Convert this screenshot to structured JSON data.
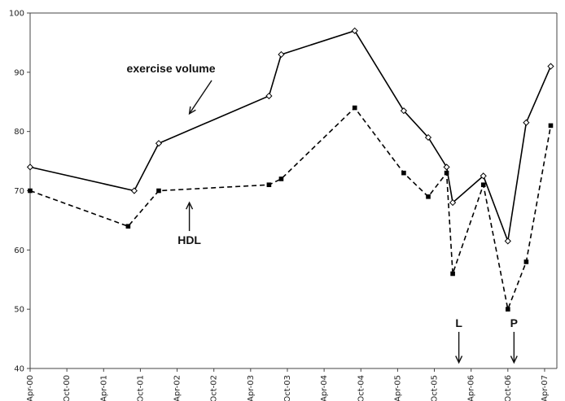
{
  "chart_data": {
    "type": "line",
    "title": "",
    "xlabel": "",
    "ylabel": "",
    "ylim": [
      40,
      100
    ],
    "yticks": [
      40,
      50,
      60,
      70,
      80,
      90,
      100
    ],
    "xlim": [
      "2000-04",
      "2007-06"
    ],
    "xticks": [
      "Apr-00",
      "Oct-00",
      "Apr-01",
      "Oct-01",
      "Apr-02",
      "Oct-02",
      "Apr-03",
      "Oct-03",
      "Apr-04",
      "Oct-04",
      "Apr-05",
      "Oct-05",
      "Apr-06",
      "Oct-06",
      "Apr-07"
    ],
    "grid": false,
    "legend": "none",
    "series": [
      {
        "name": "exercise volume",
        "style": "solid",
        "marker": "open-diamond",
        "color": "#000000",
        "points": [
          {
            "x": "2000-04",
            "y": 74
          },
          {
            "x": "2001-09",
            "y": 70
          },
          {
            "x": "2002-01",
            "y": 78
          },
          {
            "x": "2003-07",
            "y": 86
          },
          {
            "x": "2003-09",
            "y": 93
          },
          {
            "x": "2004-09",
            "y": 97
          },
          {
            "x": "2005-05",
            "y": 83.5
          },
          {
            "x": "2005-09",
            "y": 79
          },
          {
            "x": "2005-12",
            "y": 74
          },
          {
            "x": "2006-01",
            "y": 68
          },
          {
            "x": "2006-06",
            "y": 72.5
          },
          {
            "x": "2006-10",
            "y": 61.5
          },
          {
            "x": "2007-01",
            "y": 81.5
          },
          {
            "x": "2007-05",
            "y": 91
          }
        ]
      },
      {
        "name": "HDL",
        "style": "dashed",
        "marker": "filled-square",
        "color": "#000000",
        "points": [
          {
            "x": "2000-04",
            "y": 70
          },
          {
            "x": "2001-08",
            "y": 64
          },
          {
            "x": "2002-01",
            "y": 70
          },
          {
            "x": "2003-07",
            "y": 71
          },
          {
            "x": "2003-09",
            "y": 72
          },
          {
            "x": "2004-09",
            "y": 84
          },
          {
            "x": "2005-05",
            "y": 73
          },
          {
            "x": "2005-09",
            "y": 69
          },
          {
            "x": "2005-12",
            "y": 73
          },
          {
            "x": "2006-01",
            "y": 56
          },
          {
            "x": "2006-06",
            "y": 71
          },
          {
            "x": "2006-10",
            "y": 50
          },
          {
            "x": "2007-01",
            "y": 58
          },
          {
            "x": "2007-05",
            "y": 81
          }
        ]
      }
    ],
    "annotations": [
      {
        "text": "exercise volume",
        "anchor": {
          "x": "2002-03",
          "y": 90
        },
        "arrow_to": {
          "x": "2002-06",
          "y": 83
        }
      },
      {
        "text": "HDL",
        "anchor": {
          "x": "2002-06",
          "y": 61
        },
        "arrow_to": {
          "x": "2002-06",
          "y": 68
        }
      },
      {
        "text": "L",
        "anchor": {
          "x": "2006-02",
          "y": 47
        },
        "arrow_to": {
          "x": "2006-02",
          "y": 41
        }
      },
      {
        "text": "P",
        "anchor": {
          "x": "2006-11",
          "y": 47
        },
        "arrow_to": {
          "x": "2006-11",
          "y": 41
        }
      }
    ]
  }
}
